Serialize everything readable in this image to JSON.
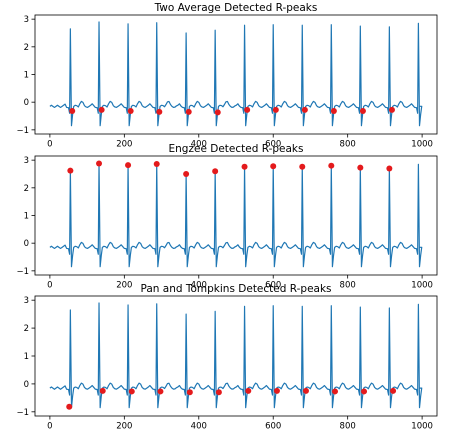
{
  "chart_data": [
    {
      "type": "line",
      "title": "Two Average Detected R-peaks",
      "xlabel": "",
      "ylabel": "",
      "xlim": [
        -40,
        1040
      ],
      "ylim": [
        -1.15,
        3.15
      ],
      "xticks": [
        0,
        200,
        400,
        600,
        800,
        1000
      ],
      "yticks": [
        -1,
        0,
        1,
        2,
        3
      ],
      "grid": false,
      "series": [
        {
          "type": "line",
          "color": "#1f77b4",
          "r_peak_x": [
            55,
            132,
            210,
            287,
            366,
            444,
            523,
            600,
            678,
            756,
            834,
            912,
            990
          ],
          "r_peak_y": [
            2.65,
            2.9,
            2.83,
            2.87,
            2.5,
            2.6,
            2.78,
            2.8,
            2.78,
            2.8,
            2.75,
            2.72,
            2.85
          ],
          "baseline": -0.15
        },
        {
          "type": "scatter",
          "color": "#e41a1c",
          "x": [
            60,
            139,
            217,
            294,
            373,
            451,
            530,
            607,
            685,
            763,
            841,
            919
          ],
          "y": [
            -0.32,
            -0.28,
            -0.32,
            -0.35,
            -0.35,
            -0.37,
            -0.28,
            -0.28,
            -0.28,
            -0.32,
            -0.32,
            -0.28
          ]
        }
      ]
    },
    {
      "type": "line",
      "title": "Engzee Detected R-peaks",
      "xlabel": "",
      "ylabel": "",
      "xlim": [
        -40,
        1040
      ],
      "ylim": [
        -1.15,
        3.15
      ],
      "xticks": [
        0,
        200,
        400,
        600,
        800,
        1000
      ],
      "yticks": [
        -1,
        0,
        1,
        2,
        3
      ],
      "grid": false,
      "series": [
        {
          "type": "line",
          "color": "#1f77b4",
          "r_peak_x": [
            55,
            132,
            210,
            287,
            366,
            444,
            523,
            600,
            678,
            756,
            834,
            912,
            990
          ],
          "r_peak_y": [
            2.65,
            2.9,
            2.83,
            2.87,
            2.5,
            2.6,
            2.78,
            2.8,
            2.78,
            2.8,
            2.75,
            2.72,
            2.85
          ],
          "baseline": -0.15
        },
        {
          "type": "scatter",
          "color": "#e41a1c",
          "x": [
            55,
            132,
            210,
            287,
            366,
            444,
            523,
            600,
            678,
            756,
            834,
            912
          ],
          "y": [
            2.62,
            2.88,
            2.82,
            2.86,
            2.5,
            2.6,
            2.76,
            2.78,
            2.76,
            2.8,
            2.73,
            2.7
          ]
        }
      ]
    },
    {
      "type": "line",
      "title": "Pan and Tompkins Detected R-peaks",
      "xlabel": "",
      "ylabel": "",
      "xlim": [
        -40,
        1040
      ],
      "ylim": [
        -1.15,
        3.15
      ],
      "xticks": [
        0,
        200,
        400,
        600,
        800,
        1000
      ],
      "yticks": [
        -1,
        0,
        1,
        2,
        3
      ],
      "grid": false,
      "series": [
        {
          "type": "line",
          "color": "#1f77b4",
          "r_peak_x": [
            55,
            132,
            210,
            287,
            366,
            444,
            523,
            600,
            678,
            756,
            834,
            912,
            990
          ],
          "r_peak_y": [
            2.65,
            2.9,
            2.83,
            2.87,
            2.5,
            2.6,
            2.78,
            2.8,
            2.78,
            2.8,
            2.75,
            2.72,
            2.85
          ],
          "baseline": -0.15
        },
        {
          "type": "scatter",
          "color": "#e41a1c",
          "x": [
            52,
            142,
            220,
            297,
            376,
            454,
            533,
            610,
            688,
            766,
            844,
            922
          ],
          "y": [
            -0.82,
            -0.25,
            -0.27,
            -0.27,
            -0.3,
            -0.3,
            -0.25,
            -0.25,
            -0.25,
            -0.27,
            -0.27,
            -0.25
          ]
        }
      ]
    }
  ]
}
